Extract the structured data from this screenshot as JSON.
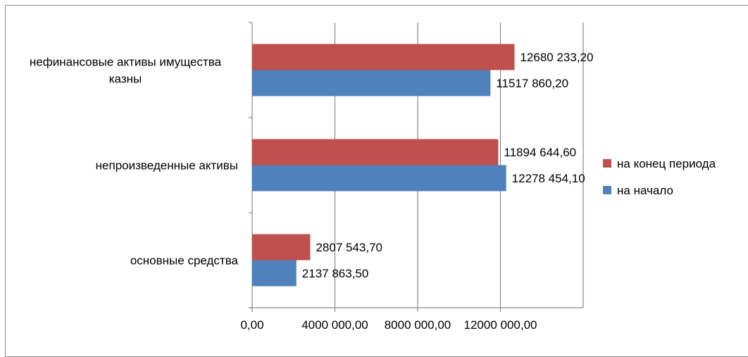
{
  "chart_data": {
    "type": "bar",
    "orientation": "horizontal",
    "title": "",
    "xlabel": "",
    "ylabel": "",
    "categories": [
      "нефинансовые активы имущества казны",
      "непроизведенные активы",
      "основные средства"
    ],
    "series": [
      {
        "name": "на конец периода",
        "color": "#c0504d",
        "values": [
          12680233.2,
          11894644.6,
          2807543.7
        ],
        "labels": [
          "12680 233,20",
          "11894 644,60",
          "2807 543,70"
        ]
      },
      {
        "name": "на начало",
        "color": "#4f81bd",
        "values": [
          11517860.2,
          12278454.1,
          2137863.5
        ],
        "labels": [
          "11517 860,20",
          "12278 454,10",
          "2137 863,50"
        ]
      }
    ],
    "xlim": [
      0,
      16000000
    ],
    "x_ticks": [
      0,
      4000000,
      8000000,
      12000000
    ],
    "x_tick_labels": [
      "0,00",
      "4000 000,00",
      "8000 000,00",
      "12000 000,00"
    ],
    "grid": true,
    "legend_position": "right"
  }
}
